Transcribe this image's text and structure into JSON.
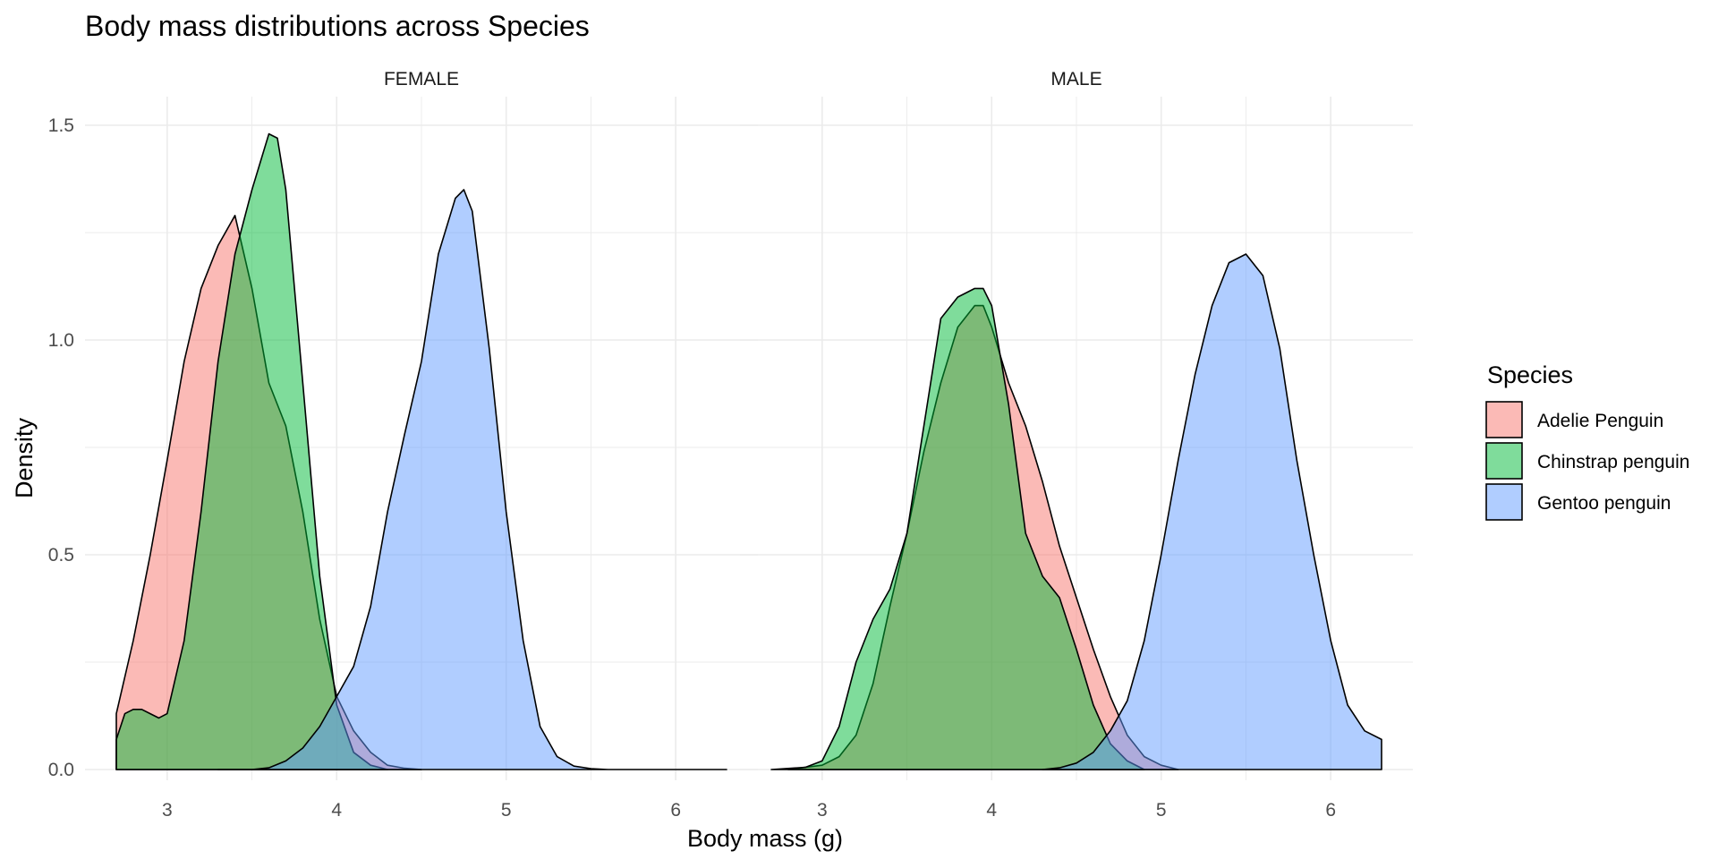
{
  "chart_data": {
    "type": "area",
    "title": "Body mass distributions across Species",
    "xlabel": "Body mass (g)",
    "ylabel": "Density",
    "xlim": [
      2.7,
      6.3
    ],
    "ylim": [
      0,
      1.5
    ],
    "x_ticks": [
      "3",
      "4",
      "5",
      "6"
    ],
    "y_ticks": [
      "0.0",
      "0.5",
      "1.0",
      "1.5"
    ],
    "grid": true,
    "legend": {
      "title": "Species",
      "position": "right",
      "entries": [
        {
          "name": "Adelie Penguin",
          "color": "#F8766D"
        },
        {
          "name": "Chinstrap penguin",
          "color": "#00BA38"
        },
        {
          "name": "Gentoo penguin",
          "color": "#619CFF"
        }
      ]
    },
    "facets": [
      {
        "label": "FEMALE",
        "series": [
          {
            "name": "Adelie Penguin",
            "x": [
              2.7,
              2.8,
              2.9,
              3.0,
              3.1,
              3.2,
              3.3,
              3.4,
              3.5,
              3.6,
              3.7,
              3.8,
              3.9,
              4.0,
              4.1,
              4.2,
              4.3,
              4.4,
              4.5
            ],
            "y": [
              0.13,
              0.3,
              0.5,
              0.72,
              0.95,
              1.12,
              1.22,
              1.29,
              1.12,
              0.9,
              0.8,
              0.6,
              0.35,
              0.17,
              0.09,
              0.04,
              0.01,
              0.003,
              0.0
            ]
          },
          {
            "name": "Chinstrap penguin",
            "x": [
              2.7,
              2.75,
              2.8,
              2.85,
              2.9,
              2.95,
              3.0,
              3.1,
              3.2,
              3.3,
              3.4,
              3.5,
              3.6,
              3.65,
              3.7,
              3.8,
              3.9,
              4.0,
              4.1,
              4.2,
              4.3
            ],
            "y": [
              0.07,
              0.13,
              0.14,
              0.14,
              0.13,
              0.12,
              0.13,
              0.3,
              0.6,
              0.95,
              1.2,
              1.35,
              1.48,
              1.47,
              1.35,
              0.9,
              0.45,
              0.15,
              0.04,
              0.01,
              0.0
            ]
          },
          {
            "name": "Gentoo penguin",
            "x": [
              3.3,
              3.5,
              3.6,
              3.7,
              3.8,
              3.9,
              4.0,
              4.1,
              4.2,
              4.3,
              4.4,
              4.5,
              4.6,
              4.7,
              4.75,
              4.8,
              4.9,
              5.0,
              5.1,
              5.2,
              5.3,
              5.4,
              5.5,
              5.6,
              5.8,
              6.0,
              6.3
            ],
            "y": [
              0.0,
              0.0,
              0.004,
              0.02,
              0.05,
              0.1,
              0.17,
              0.24,
              0.38,
              0.6,
              0.78,
              0.95,
              1.2,
              1.33,
              1.35,
              1.3,
              0.98,
              0.6,
              0.3,
              0.1,
              0.03,
              0.008,
              0.002,
              0.0,
              0.0,
              0.0,
              0.0
            ]
          }
        ]
      },
      {
        "label": "MALE",
        "series": [
          {
            "name": "Adelie Penguin",
            "x": [
              2.8,
              3.0,
              3.1,
              3.2,
              3.3,
              3.4,
              3.5,
              3.6,
              3.7,
              3.8,
              3.9,
              3.95,
              4.0,
              4.1,
              4.2,
              4.3,
              4.4,
              4.5,
              4.6,
              4.7,
              4.8,
              4.9,
              5.0,
              5.1
            ],
            "y": [
              0.0,
              0.01,
              0.03,
              0.08,
              0.2,
              0.38,
              0.55,
              0.74,
              0.9,
              1.03,
              1.08,
              1.08,
              1.03,
              0.9,
              0.8,
              0.67,
              0.52,
              0.4,
              0.28,
              0.17,
              0.08,
              0.03,
              0.01,
              0.0
            ]
          },
          {
            "name": "Chinstrap penguin",
            "x": [
              2.7,
              2.9,
              3.0,
              3.1,
              3.2,
              3.3,
              3.4,
              3.5,
              3.6,
              3.7,
              3.8,
              3.9,
              3.95,
              4.0,
              4.1,
              4.2,
              4.3,
              4.4,
              4.5,
              4.6,
              4.7,
              4.8,
              4.9
            ],
            "y": [
              0.0,
              0.005,
              0.02,
              0.1,
              0.25,
              0.35,
              0.42,
              0.55,
              0.8,
              1.05,
              1.1,
              1.12,
              1.12,
              1.08,
              0.85,
              0.55,
              0.45,
              0.4,
              0.28,
              0.15,
              0.06,
              0.02,
              0.0
            ]
          },
          {
            "name": "Gentoo penguin",
            "x": [
              4.3,
              4.4,
              4.5,
              4.6,
              4.7,
              4.8,
              4.9,
              5.0,
              5.1,
              5.2,
              5.3,
              5.4,
              5.5,
              5.6,
              5.7,
              5.8,
              5.9,
              6.0,
              6.1,
              6.2,
              6.3
            ],
            "y": [
              0.0,
              0.004,
              0.015,
              0.04,
              0.09,
              0.16,
              0.3,
              0.5,
              0.72,
              0.92,
              1.08,
              1.18,
              1.2,
              1.15,
              0.98,
              0.72,
              0.5,
              0.3,
              0.15,
              0.09,
              0.07
            ]
          }
        ]
      }
    ]
  }
}
